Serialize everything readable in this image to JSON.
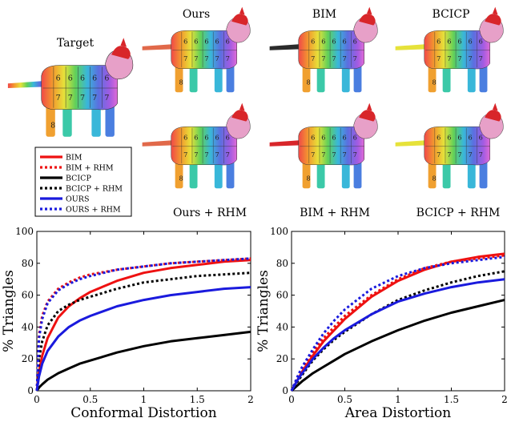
{
  "figure": {
    "target_label": "Target",
    "column_labels_top": [
      "Ours",
      "BIM",
      "BCICP"
    ],
    "column_labels_bottom": [
      "Ours + RHM",
      "BIM + RHM",
      "BCICP + RHM"
    ],
    "patch_numbers": [
      "6",
      "7",
      "8"
    ],
    "legend": [
      {
        "label": "BIM",
        "color": "#ee1111",
        "dash": "solid"
      },
      {
        "label": "BIM + RHM",
        "color": "#ee1111",
        "dash": "dotted"
      },
      {
        "label": "BCICP",
        "color": "#000000",
        "dash": "solid"
      },
      {
        "label": "BCICP + RHM",
        "color": "#000000",
        "dash": "dotted"
      },
      {
        "label": "OURS",
        "color": "#1a1add",
        "dash": "solid"
      },
      {
        "label": "OURS + RHM",
        "color": "#1a1add",
        "dash": "dotted"
      }
    ]
  },
  "chart_data": [
    {
      "type": "line",
      "xlabel": "Conformal Distortion",
      "ylabel": "% Triangles",
      "xlim": [
        0,
        2
      ],
      "ylim": [
        0,
        100
      ],
      "xticks": [
        "0",
        "0.5",
        "1",
        "1.5",
        "2"
      ],
      "yticks": [
        "0",
        "20",
        "40",
        "60",
        "80",
        "100"
      ],
      "grid": false,
      "x": [
        0,
        0.02,
        0.05,
        0.1,
        0.2,
        0.3,
        0.4,
        0.5,
        0.75,
        1.0,
        1.25,
        1.5,
        1.75,
        2.0
      ],
      "series": [
        {
          "name": "BIM",
          "color": "#ee1111",
          "dash": "solid",
          "values": [
            0,
            12,
            22,
            33,
            46,
            53,
            58,
            62,
            69,
            74,
            77,
            79,
            81,
            82
          ]
        },
        {
          "name": "BIM + RHM",
          "color": "#ee1111",
          "dash": "dotted",
          "values": [
            0,
            35,
            47,
            56,
            64,
            68,
            71,
            73,
            76,
            78,
            80,
            81,
            82,
            83
          ]
        },
        {
          "name": "BCICP",
          "color": "#000000",
          "dash": "solid",
          "values": [
            0,
            2,
            4,
            7,
            11,
            14,
            17,
            19,
            24,
            28,
            31,
            33,
            35,
            37
          ]
        },
        {
          "name": "BCICP + RHM",
          "color": "#000000",
          "dash": "dotted",
          "values": [
            0,
            20,
            31,
            41,
            50,
            54,
            57,
            59,
            64,
            68,
            70,
            72,
            73,
            74
          ]
        },
        {
          "name": "OURS",
          "color": "#1a1add",
          "dash": "solid",
          "values": [
            0,
            9,
            17,
            25,
            34,
            40,
            44,
            47,
            53,
            57,
            60,
            62,
            64,
            65
          ]
        },
        {
          "name": "OURS + RHM",
          "color": "#1a1add",
          "dash": "dotted",
          "values": [
            0,
            33,
            45,
            55,
            63,
            67,
            70,
            72,
            76,
            78,
            80,
            81,
            82,
            83
          ]
        }
      ]
    },
    {
      "type": "line",
      "xlabel": "Area Distortion",
      "ylabel": "% Triangles",
      "xlim": [
        0,
        2
      ],
      "ylim": [
        0,
        100
      ],
      "xticks": [
        "0",
        "0.5",
        "1",
        "1.5",
        "2"
      ],
      "yticks": [
        "0",
        "20",
        "40",
        "60",
        "80",
        "100"
      ],
      "grid": false,
      "x": [
        0,
        0.05,
        0.1,
        0.2,
        0.3,
        0.4,
        0.5,
        0.75,
        1.0,
        1.25,
        1.5,
        1.75,
        2.0
      ],
      "series": [
        {
          "name": "BIM",
          "color": "#ee1111",
          "dash": "solid",
          "values": [
            0,
            6,
            12,
            22,
            31,
            38,
            45,
            59,
            69,
            76,
            81,
            84,
            86
          ]
        },
        {
          "name": "BIM + RHM",
          "color": "#ee1111",
          "dash": "dotted",
          "values": [
            0,
            7,
            13,
            24,
            33,
            40,
            47,
            60,
            70,
            77,
            81,
            83,
            85
          ]
        },
        {
          "name": "BCICP",
          "color": "#000000",
          "dash": "solid",
          "values": [
            0,
            3,
            6,
            11,
            15,
            19,
            23,
            31,
            38,
            44,
            49,
            53,
            57
          ]
        },
        {
          "name": "BCICP + RHM",
          "color": "#000000",
          "dash": "dotted",
          "values": [
            0,
            5,
            10,
            19,
            26,
            32,
            37,
            48,
            57,
            63,
            68,
            72,
            75
          ]
        },
        {
          "name": "OURS",
          "color": "#1a1add",
          "dash": "solid",
          "values": [
            0,
            6,
            11,
            20,
            27,
            33,
            38,
            48,
            56,
            61,
            65,
            68,
            70
          ]
        },
        {
          "name": "OURS + RHM",
          "color": "#1a1add",
          "dash": "dotted",
          "values": [
            0,
            8,
            15,
            26,
            36,
            44,
            51,
            64,
            72,
            77,
            80,
            82,
            84
          ]
        }
      ]
    }
  ]
}
